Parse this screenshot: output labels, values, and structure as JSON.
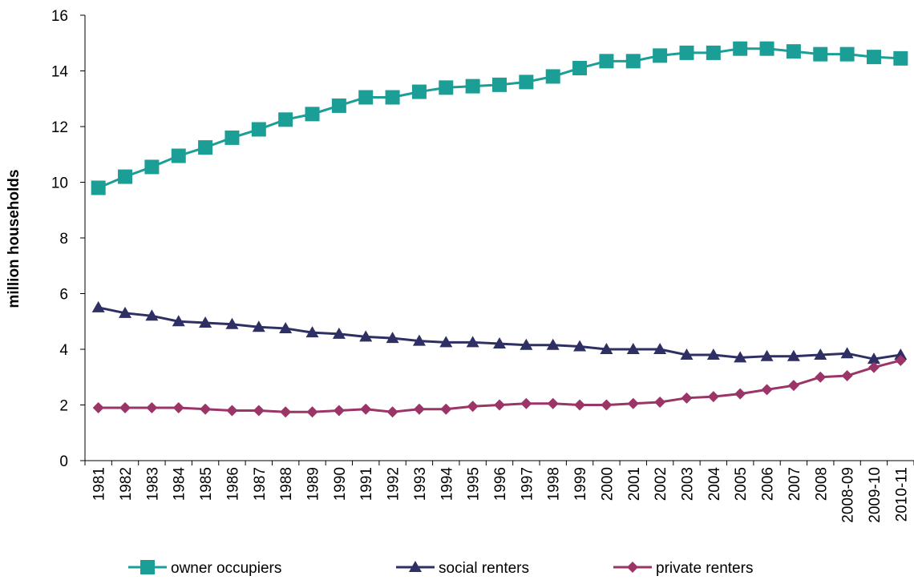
{
  "chart_data": {
    "type": "line",
    "title": "",
    "xlabel": "",
    "ylabel": "million households",
    "ylim": [
      0,
      16
    ],
    "yticks": [
      "0",
      "2",
      "4",
      "6",
      "8",
      "10",
      "12",
      "14",
      "16"
    ],
    "grid": false,
    "legend_position": "bottom",
    "categories": [
      "1981",
      "1982",
      "1983",
      "1984",
      "1985",
      "1986",
      "1987",
      "1988",
      "1989",
      "1990",
      "1991",
      "1992",
      "1993",
      "1994",
      "1995",
      "1996",
      "1997",
      "1998",
      "1999",
      "2000",
      "2001",
      "2002",
      "2003",
      "2004",
      "2005",
      "2006",
      "2007",
      "2008",
      "2008-09",
      "2009-10",
      "2010-11"
    ],
    "series": [
      {
        "name": "owner occupiers",
        "color": "#1A9E96",
        "marker": "square",
        "values": [
          9.8,
          10.2,
          10.55,
          10.95,
          11.25,
          11.6,
          11.9,
          12.25,
          12.45,
          12.75,
          13.05,
          13.05,
          13.25,
          13.4,
          13.45,
          13.5,
          13.6,
          13.8,
          14.1,
          14.35,
          14.35,
          14.55,
          14.65,
          14.65,
          14.8,
          14.8,
          14.7,
          14.6,
          14.6,
          14.5,
          14.45
        ]
      },
      {
        "name": "social renters",
        "color": "#2E2F62",
        "marker": "triangle",
        "values": [
          5.5,
          5.3,
          5.2,
          5.0,
          4.95,
          4.9,
          4.8,
          4.75,
          4.6,
          4.55,
          4.45,
          4.4,
          4.3,
          4.25,
          4.25,
          4.2,
          4.15,
          4.15,
          4.1,
          4.0,
          4.0,
          4.0,
          3.8,
          3.8,
          3.7,
          3.75,
          3.75,
          3.8,
          3.85,
          3.65,
          3.8
        ]
      },
      {
        "name": "private renters",
        "color": "#9B3567",
        "marker": "diamond",
        "values": [
          1.9,
          1.9,
          1.9,
          1.9,
          1.85,
          1.8,
          1.8,
          1.75,
          1.75,
          1.8,
          1.85,
          1.75,
          1.85,
          1.85,
          1.95,
          2.0,
          2.05,
          2.05,
          2.0,
          2.0,
          2.05,
          2.1,
          2.25,
          2.3,
          2.4,
          2.55,
          2.7,
          3.0,
          3.05,
          3.35,
          3.6
        ]
      }
    ]
  }
}
